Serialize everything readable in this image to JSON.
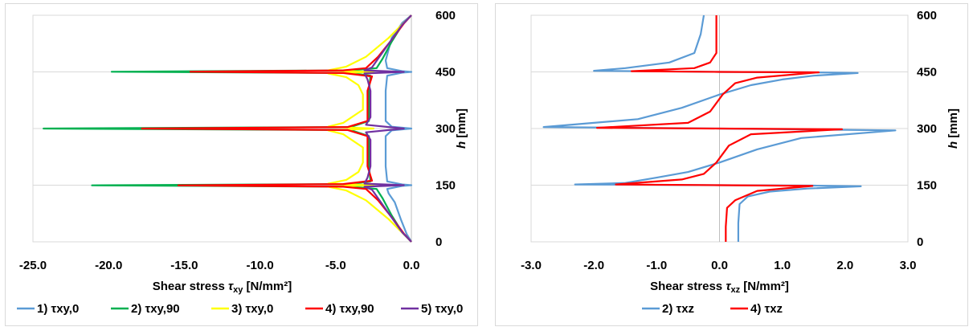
{
  "chart_data": [
    {
      "type": "line",
      "xlabel_prefix": "Shear stress ",
      "xlabel_symbol": "τ",
      "xlabel_sub": "xy",
      "xlabel_suffix": " [N/mm²]",
      "ylabel_italic": "h",
      "ylabel_unit": " [mm]",
      "xlim": [
        -25,
        0
      ],
      "ylim": [
        0,
        600
      ],
      "xticks": [
        "-25.0",
        "-20.0",
        "-15.0",
        "-10.0",
        "-5.0",
        "0.0"
      ],
      "yticks": [
        "0",
        "150",
        "300",
        "450",
        "600"
      ],
      "grid": "horizontal",
      "legend": "bottom",
      "series": [
        {
          "name": "1) τxy,0",
          "color": "#5b9bd5",
          "points": [
            [
              0,
              0
            ],
            [
              -0.3,
              20
            ],
            [
              -0.7,
              60
            ],
            [
              -1.1,
              105
            ],
            [
              -1.5,
              128
            ],
            [
              -1.6,
              140
            ],
            [
              -0.6,
              148
            ],
            [
              0,
              150
            ],
            [
              -0.6,
              152
            ],
            [
              -1.6,
              160
            ],
            [
              -1.7,
              200
            ],
            [
              -1.7,
              280
            ],
            [
              -1.3,
              295
            ],
            [
              0,
              300
            ],
            [
              -1.3,
              305
            ],
            [
              -1.7,
              320
            ],
            [
              -1.7,
              400
            ],
            [
              -1.6,
              440
            ],
            [
              -0.6,
              448
            ],
            [
              0,
              450
            ],
            [
              -0.6,
              452
            ],
            [
              -1.6,
              460
            ],
            [
              -1.7,
              480
            ],
            [
              -1.3,
              540
            ],
            [
              -0.6,
              580
            ],
            [
              0,
              600
            ]
          ]
        },
        {
          "name": "2) τxy,90",
          "color": "#00b050",
          "points": [
            [
              0,
              0
            ],
            [
              -0.6,
              25
            ],
            [
              -1.3,
              70
            ],
            [
              -1.9,
              115
            ],
            [
              -2.3,
              140
            ],
            [
              -4,
              146
            ],
            [
              -21.1,
              149.5
            ],
            [
              -4,
              153
            ],
            [
              -2.7,
              160
            ],
            [
              -2.8,
              200
            ],
            [
              -2.8,
              280
            ],
            [
              -4,
              296
            ],
            [
              -24.3,
              300
            ],
            [
              -4,
              304
            ],
            [
              -2.8,
              320
            ],
            [
              -2.8,
              400
            ],
            [
              -2.7,
              440
            ],
            [
              -4,
              447
            ],
            [
              -19.8,
              450.5
            ],
            [
              -4,
              454
            ],
            [
              -2.3,
              460
            ],
            [
              -1.9,
              485
            ],
            [
              -1.3,
              530
            ],
            [
              -0.6,
              575
            ],
            [
              0,
              600
            ]
          ]
        },
        {
          "name": "3) τxy,0",
          "color": "#ffff00",
          "points": [
            [
              0,
              0
            ],
            [
              -0.5,
              20
            ],
            [
              -1.5,
              60
            ],
            [
              -3.0,
              110
            ],
            [
              -4.3,
              136
            ],
            [
              -5.5,
              146
            ],
            [
              -2.5,
              150
            ],
            [
              -5.5,
              154
            ],
            [
              -4.3,
              164
            ],
            [
              -3.5,
              185
            ],
            [
              -3.2,
              210
            ],
            [
              -3.2,
              250
            ],
            [
              -4.5,
              285
            ],
            [
              -5.5,
              295
            ],
            [
              -2.5,
              300
            ],
            [
              -5.5,
              305
            ],
            [
              -4.5,
              315
            ],
            [
              -3.2,
              350
            ],
            [
              -3.2,
              390
            ],
            [
              -3.5,
              415
            ],
            [
              -4.3,
              436
            ],
            [
              -5.5,
              446
            ],
            [
              -2.5,
              450
            ],
            [
              -5.5,
              454
            ],
            [
              -4.3,
              464
            ],
            [
              -3.0,
              490
            ],
            [
              -1.5,
              540
            ],
            [
              -0.5,
              580
            ],
            [
              0,
              600
            ]
          ]
        },
        {
          "name": "4) τxy,90",
          "color": "#ff0000",
          "points": [
            [
              0,
              0
            ],
            [
              -0.5,
              22
            ],
            [
              -1.3,
              65
            ],
            [
              -2.2,
              110
            ],
            [
              -3.0,
              140
            ],
            [
              -4.5,
              146
            ],
            [
              -15.4,
              149.5
            ],
            [
              -4.5,
              153
            ],
            [
              -2.6,
              162
            ],
            [
              -2.9,
              200
            ],
            [
              -2.9,
              280
            ],
            [
              -4.2,
              296
            ],
            [
              -17.8,
              300
            ],
            [
              -4.2,
              304
            ],
            [
              -2.9,
              320
            ],
            [
              -2.9,
              400
            ],
            [
              -2.6,
              438
            ],
            [
              -4.5,
              447
            ],
            [
              -14.6,
              450.5
            ],
            [
              -4.5,
              454
            ],
            [
              -3.0,
              460
            ],
            [
              -2.2,
              490
            ],
            [
              -1.3,
              535
            ],
            [
              -0.5,
              578
            ],
            [
              0,
              600
            ]
          ]
        },
        {
          "name": "5) τxy,0",
          "color": "#7030a0",
          "points": [
            [
              0,
              0
            ],
            [
              -0.6,
              25
            ],
            [
              -1.4,
              70
            ],
            [
              -2.2,
              115
            ],
            [
              -2.6,
              138
            ],
            [
              -3.1,
              146
            ],
            [
              -0.5,
              150
            ],
            [
              -3.1,
              154
            ],
            [
              -2.9,
              170
            ],
            [
              -2.7,
              200
            ],
            [
              -2.7,
              270
            ],
            [
              -3.0,
              290
            ],
            [
              -0.5,
              300
            ],
            [
              -3.0,
              310
            ],
            [
              -2.7,
              330
            ],
            [
              -2.7,
              400
            ],
            [
              -2.9,
              430
            ],
            [
              -3.1,
              446
            ],
            [
              -0.5,
              450
            ],
            [
              -3.1,
              454
            ],
            [
              -2.6,
              462
            ],
            [
              -2.2,
              485
            ],
            [
              -1.4,
              530
            ],
            [
              -0.6,
              575
            ],
            [
              0,
              600
            ]
          ]
        }
      ]
    },
    {
      "type": "line",
      "xlabel_prefix": "Shear stress ",
      "xlabel_symbol": "τ",
      "xlabel_sub": "xz",
      "xlabel_suffix": " [N/mm²]",
      "ylabel_italic": "h",
      "ylabel_unit": " [mm]",
      "xlim": [
        -3,
        3
      ],
      "ylim": [
        0,
        600
      ],
      "xticks": [
        "-3.0",
        "-2.0",
        "-1.0",
        "0.0",
        "1.0",
        "2.0",
        "3.0"
      ],
      "yticks": [
        "0",
        "150",
        "300",
        "450",
        "600"
      ],
      "grid": "horizontal",
      "legend": "bottom",
      "series": [
        {
          "name": "2) τxz",
          "color": "#5b9bd5",
          "points": [
            [
              0.3,
              0
            ],
            [
              0.3,
              50
            ],
            [
              0.32,
              100
            ],
            [
              0.45,
              120
            ],
            [
              0.8,
              133
            ],
            [
              1.4,
              141
            ],
            [
              2.25,
              147
            ],
            [
              1.5,
              149
            ],
            [
              0,
              150
            ],
            [
              -2.3,
              152
            ],
            [
              -1.5,
              156
            ],
            [
              -1.0,
              170
            ],
            [
              -0.5,
              185
            ],
            [
              0,
              210
            ],
            [
              0.6,
              245
            ],
            [
              1.3,
              275
            ],
            [
              2.8,
              295
            ],
            [
              0,
              300
            ],
            [
              -2.8,
              304
            ],
            [
              -1.3,
              325
            ],
            [
              -0.6,
              355
            ],
            [
              0,
              390
            ],
            [
              0.5,
              415
            ],
            [
              1.0,
              430
            ],
            [
              1.5,
              440
            ],
            [
              2.2,
              447
            ],
            [
              1.4,
              449
            ],
            [
              0,
              450
            ],
            [
              -2.0,
              453
            ],
            [
              -1.5,
              460
            ],
            [
              -0.8,
              475
            ],
            [
              -0.4,
              500
            ],
            [
              -0.3,
              550
            ],
            [
              -0.25,
              600
            ]
          ]
        },
        {
          "name": "4) τxz",
          "color": "#ff0000",
          "points": [
            [
              0.1,
              0
            ],
            [
              0.1,
              40
            ],
            [
              0.12,
              90
            ],
            [
              0.25,
              110
            ],
            [
              0.6,
              135
            ],
            [
              1.48,
              148
            ],
            [
              0,
              150
            ],
            [
              -1.65,
              152
            ],
            [
              -0.6,
              165
            ],
            [
              -0.25,
              180
            ],
            [
              -0.05,
              210
            ],
            [
              0.15,
              255
            ],
            [
              0.5,
              285
            ],
            [
              1.95,
              298
            ],
            [
              0,
              300
            ],
            [
              -1.95,
              302
            ],
            [
              -0.5,
              315
            ],
            [
              -0.15,
              345
            ],
            [
              0.05,
              390
            ],
            [
              0.25,
              420
            ],
            [
              0.6,
              435
            ],
            [
              1.58,
              449
            ],
            [
              0,
              450
            ],
            [
              -1.4,
              452
            ],
            [
              -0.4,
              460
            ],
            [
              -0.15,
              475
            ],
            [
              -0.05,
              500
            ],
            [
              -0.05,
              600
            ]
          ]
        }
      ]
    }
  ]
}
